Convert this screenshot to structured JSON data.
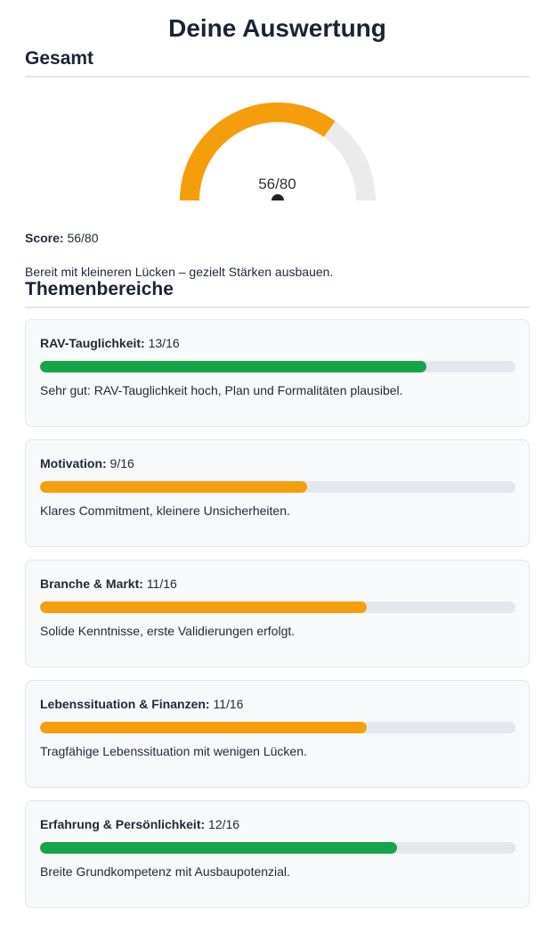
{
  "title": "Deine Auswertung",
  "overall": {
    "heading": "Gesamt",
    "score": 56,
    "max": 80,
    "gauge_label": "56/80",
    "score_label": "Score:",
    "score_value": "56/80",
    "summary": "Bereit mit kleineren Lücken – gezielt Stärken ausbauen.",
    "color": "#f59e0b",
    "track_color": "#ebebeb"
  },
  "topics": {
    "heading": "Themenbereiche",
    "items": [
      {
        "name": "RAV-Tauglichkeit:",
        "score_text": "13/16",
        "score": 13,
        "max": 16,
        "description": "Sehr gut: RAV-Tauglichkeit hoch, Plan und Formalitäten plausibel.",
        "color": "#16a34a"
      },
      {
        "name": "Motivation:",
        "score_text": "9/16",
        "score": 9,
        "max": 16,
        "description": "Klares Commitment, kleinere Unsicherheiten.",
        "color": "#f59e0b"
      },
      {
        "name": "Branche & Markt:",
        "score_text": "11/16",
        "score": 11,
        "max": 16,
        "description": "Solide Kenntnisse, erste Validierungen erfolgt.",
        "color": "#f59e0b"
      },
      {
        "name": "Lebenssituation & Finanzen:",
        "score_text": "11/16",
        "score": 11,
        "max": 16,
        "description": "Tragfähige Lebenssituation mit wenigen Lücken.",
        "color": "#f59e0b"
      },
      {
        "name": "Erfahrung & Persönlichkeit:",
        "score_text": "12/16",
        "score": 12,
        "max": 16,
        "description": "Breite Grundkompetenz mit Ausbaupotenzial.",
        "color": "#16a34a"
      }
    ]
  }
}
